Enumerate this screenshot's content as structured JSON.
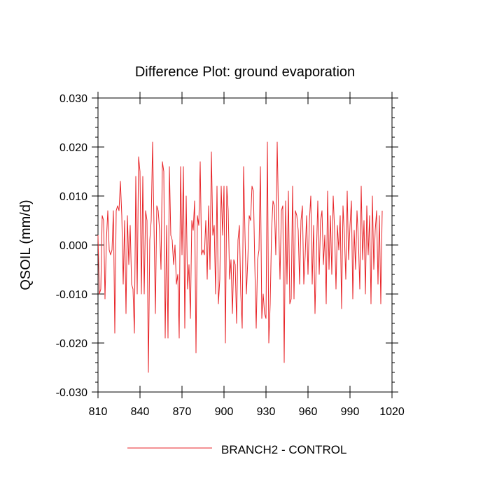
{
  "chart_data": {
    "type": "line",
    "title": "Difference Plot: ground evaporation",
    "xlabel": "",
    "ylabel": "QSOIL  (mm/d)",
    "xlim": [
      810,
      1020
    ],
    "ylim": [
      -0.03,
      0.03
    ],
    "x_ticks": [
      810,
      840,
      870,
      900,
      930,
      960,
      990,
      1020
    ],
    "x_tick_labels": [
      "810",
      "840",
      "870",
      "900",
      "930",
      "960",
      "990",
      "1020"
    ],
    "y_ticks": [
      -0.03,
      -0.02,
      -0.01,
      0.0,
      0.01,
      0.02,
      0.03
    ],
    "y_tick_labels": [
      "-0.030",
      "-0.020",
      "-0.010",
      "0.000",
      "0.010",
      "0.020",
      "0.030"
    ],
    "legend_position": "bottom-center",
    "series": [
      {
        "name": "BRANCH2 - CONTROL",
        "color": "#e8262a",
        "x_start": 810,
        "x_step": 1,
        "values": [
          0.002,
          -0.01,
          -0.009,
          0.006,
          0.005,
          -0.011,
          0.001,
          0.007,
          -0.001,
          -0.002,
          -0.001,
          0.007,
          -0.018,
          0.007,
          0.008,
          0.007,
          0.013,
          0.006,
          -0.008,
          0.005,
          -0.014,
          0.006,
          -0.004,
          0.004,
          -0.008,
          -0.009,
          -0.018,
          0.014,
          -0.01,
          0.018,
          0.015,
          -0.01,
          0.014,
          -0.01,
          0.007,
          0.005,
          -0.026,
          0.001,
          0.005,
          0.021,
          0.004,
          -0.014,
          0.008,
          0.007,
          0.003,
          -0.005,
          0.017,
          0.015,
          -0.019,
          0.004,
          -0.019,
          0.016,
          0.002,
          0.001,
          -0.004,
          0.0,
          -0.008,
          -0.006,
          -0.019,
          0.016,
          -0.002,
          0.016,
          -0.017,
          0.01,
          -0.009,
          -0.004,
          -0.015,
          0.005,
          0.003,
          0.009,
          -0.022,
          0.006,
          0.004,
          0.017,
          -0.002,
          -0.001,
          -0.002,
          0.005,
          -0.007,
          0.008,
          -0.005,
          0.019,
          0.002,
          0.004,
          -0.01,
          0.012,
          -0.012,
          -0.007,
          0.012,
          0.002,
          0.012,
          -0.02,
          0.012,
          0.007,
          -0.007,
          -0.003,
          -0.014,
          -0.003,
          -0.004,
          -0.016,
          0.001,
          0.004,
          -0.01,
          -0.017,
          0.016,
          0.002,
          -0.01,
          -0.003,
          0.006,
          0.005,
          0.012,
          0.011,
          -0.004,
          -0.017,
          -0.003,
          -0.001,
          0.016,
          -0.015,
          -0.01,
          -0.014,
          -0.015,
          0.021,
          -0.02,
          -0.012,
          0.003,
          0.009,
          0.008,
          -0.002,
          0.021,
          0.005,
          -0.007,
          0.007,
          0.008,
          -0.024,
          0.009,
          -0.008,
          0.011,
          -0.012,
          -0.011,
          0.012,
          -0.011,
          0.007,
          0.006,
          0.003,
          -0.008,
          0.005,
          0.008,
          -0.008,
          -0.002,
          0.006,
          -0.006,
          0.005,
          0.01,
          -0.008,
          0.004,
          -0.014,
          -0.002,
          0.009,
          -0.006,
          0.005,
          0.007,
          -0.004,
          0.002,
          -0.012,
          0.011,
          -0.005,
          0.006,
          -0.006,
          0.01,
          0.003,
          -0.009,
          0.004,
          -0.001,
          0.006,
          -0.013,
          0.008,
          0.002,
          -0.007,
          0.011,
          -0.003,
          0.004,
          0.009,
          -0.011,
          0.003,
          -0.005,
          0.007,
          0.001,
          -0.009,
          0.012,
          -0.003,
          0.005,
          -0.01,
          0.008,
          -0.002,
          0.006,
          -0.012,
          0.01,
          -0.005,
          0.003,
          0.007,
          -0.008,
          0.006,
          -0.012,
          0.007
        ]
      }
    ]
  }
}
